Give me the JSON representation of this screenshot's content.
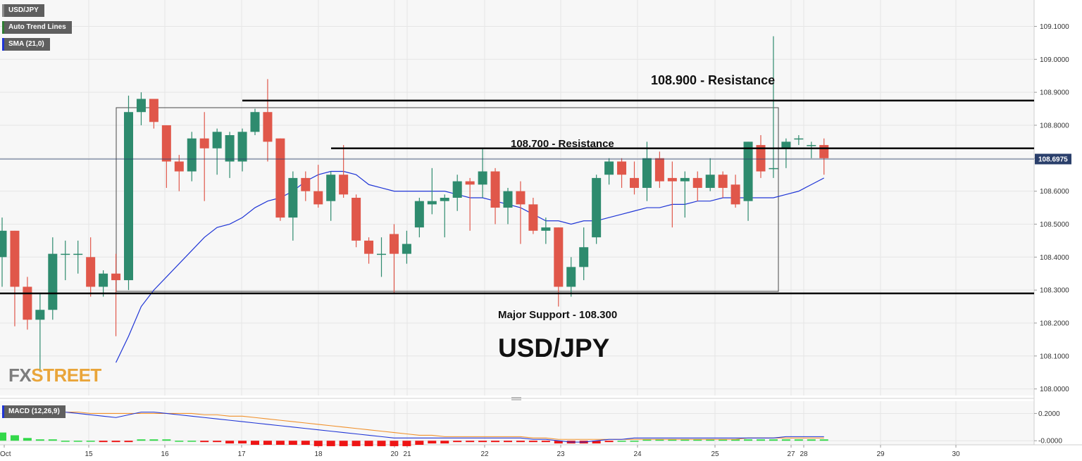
{
  "legends": {
    "main": [
      {
        "label": "USD/JPY",
        "color": "#5f5f5f"
      },
      {
        "label": "Auto Trend Lines",
        "color": "#2e7d32"
      },
      {
        "label": "SMA (21,0)",
        "color": "#1f35d6"
      }
    ],
    "macd": {
      "label": "MACD (12,26,9)",
      "color": "#1f35d6"
    }
  },
  "colors": {
    "up": "#2e8b6e",
    "down": "#e0574a",
    "sma": "#1f35d6",
    "macd_line": "#1f35d6",
    "signal_line": "#f0902a",
    "hist_up": "#33d84a",
    "hist_down": "#ee1515",
    "price_tag": "#2a3f6b",
    "plot_bg": "#f7f7f7",
    "grid": "#e6e6e6"
  },
  "annotations": {
    "resistance_high": "108.900 - Resistance",
    "resistance_mid": "108.700 - Resistance",
    "support": "Major Support - 108.300",
    "big_title": "USD/JPY",
    "watermark_fx": "FX",
    "watermark_street": "STREET"
  },
  "chart_data": [
    {
      "type": "candlestick",
      "title": "USD/JPY",
      "ylim": [
        107.98,
        109.18
      ],
      "y_ticks": [
        "109.1000",
        "109.0000",
        "108.9000",
        "108.8000",
        "108.7000",
        "108.6000",
        "108.5000",
        "108.4000",
        "108.3000",
        "108.2000",
        "108.1000",
        "108.0000"
      ],
      "x_ticks": [
        "Oct",
        "15",
        "16",
        "17",
        "18",
        "20",
        "21",
        "22",
        "23",
        "24",
        "25",
        "27",
        "28",
        "29",
        "30"
      ],
      "current_price": "108.6975",
      "levels": {
        "resistance_high": 108.875,
        "resistance_mid": 108.73,
        "support": 108.29
      },
      "candles": [
        {
          "o": 108.4,
          "h": 108.52,
          "l": 108.31,
          "c": 108.48
        },
        {
          "o": 108.48,
          "h": 108.48,
          "l": 108.19,
          "c": 108.31
        },
        {
          "o": 108.31,
          "h": 108.34,
          "l": 108.18,
          "c": 108.21
        },
        {
          "o": 108.21,
          "h": 108.29,
          "l": 108.06,
          "c": 108.24
        },
        {
          "o": 108.24,
          "h": 108.46,
          "l": 108.21,
          "c": 108.41
        },
        {
          "o": 108.41,
          "h": 108.45,
          "l": 108.33,
          "c": 108.41
        },
        {
          "o": 108.41,
          "h": 108.45,
          "l": 108.35,
          "c": 108.41
        },
        {
          "o": 108.4,
          "h": 108.46,
          "l": 108.28,
          "c": 108.31
        },
        {
          "o": 108.31,
          "h": 108.36,
          "l": 108.28,
          "c": 108.35
        },
        {
          "o": 108.35,
          "h": 108.41,
          "l": 108.16,
          "c": 108.33
        },
        {
          "o": 108.33,
          "h": 108.89,
          "l": 108.3,
          "c": 108.84
        },
        {
          "o": 108.84,
          "h": 108.9,
          "l": 108.8,
          "c": 108.88
        },
        {
          "o": 108.88,
          "h": 108.88,
          "l": 108.79,
          "c": 108.81
        },
        {
          "o": 108.8,
          "h": 108.8,
          "l": 108.61,
          "c": 108.69
        },
        {
          "o": 108.69,
          "h": 108.71,
          "l": 108.6,
          "c": 108.66
        },
        {
          "o": 108.66,
          "h": 108.78,
          "l": 108.63,
          "c": 108.76
        },
        {
          "o": 108.76,
          "h": 108.84,
          "l": 108.57,
          "c": 108.73
        },
        {
          "o": 108.73,
          "h": 108.79,
          "l": 108.65,
          "c": 108.78
        },
        {
          "o": 108.69,
          "h": 108.78,
          "l": 108.64,
          "c": 108.77
        },
        {
          "o": 108.69,
          "h": 108.79,
          "l": 108.66,
          "c": 108.78
        },
        {
          "o": 108.78,
          "h": 108.85,
          "l": 108.77,
          "c": 108.84
        },
        {
          "o": 108.84,
          "h": 108.94,
          "l": 108.69,
          "c": 108.75
        },
        {
          "o": 108.76,
          "h": 108.76,
          "l": 108.51,
          "c": 108.52
        },
        {
          "o": 108.52,
          "h": 108.66,
          "l": 108.45,
          "c": 108.64
        },
        {
          "o": 108.64,
          "h": 108.66,
          "l": 108.57,
          "c": 108.6
        },
        {
          "o": 108.6,
          "h": 108.68,
          "l": 108.55,
          "c": 108.56
        },
        {
          "o": 108.57,
          "h": 108.66,
          "l": 108.51,
          "c": 108.65
        },
        {
          "o": 108.65,
          "h": 108.74,
          "l": 108.58,
          "c": 108.59
        },
        {
          "o": 108.58,
          "h": 108.59,
          "l": 108.43,
          "c": 108.45
        },
        {
          "o": 108.45,
          "h": 108.46,
          "l": 108.38,
          "c": 108.41
        },
        {
          "o": 108.41,
          "h": 108.46,
          "l": 108.34,
          "c": 108.41
        },
        {
          "o": 108.47,
          "h": 108.5,
          "l": 108.29,
          "c": 108.41
        },
        {
          "o": 108.41,
          "h": 108.48,
          "l": 108.38,
          "c": 108.44
        },
        {
          "o": 108.49,
          "h": 108.58,
          "l": 108.46,
          "c": 108.57
        },
        {
          "o": 108.56,
          "h": 108.67,
          "l": 108.53,
          "c": 108.57
        },
        {
          "o": 108.57,
          "h": 108.59,
          "l": 108.46,
          "c": 108.58
        },
        {
          "o": 108.58,
          "h": 108.65,
          "l": 108.54,
          "c": 108.63
        },
        {
          "o": 108.63,
          "h": 108.64,
          "l": 108.48,
          "c": 108.62
        },
        {
          "o": 108.62,
          "h": 108.73,
          "l": 108.58,
          "c": 108.66
        },
        {
          "o": 108.66,
          "h": 108.67,
          "l": 108.5,
          "c": 108.55
        },
        {
          "o": 108.55,
          "h": 108.61,
          "l": 108.5,
          "c": 108.6
        },
        {
          "o": 108.6,
          "h": 108.63,
          "l": 108.44,
          "c": 108.56
        },
        {
          "o": 108.56,
          "h": 108.58,
          "l": 108.47,
          "c": 108.48
        },
        {
          "o": 108.48,
          "h": 108.52,
          "l": 108.44,
          "c": 108.49
        },
        {
          "o": 108.49,
          "h": 108.49,
          "l": 108.25,
          "c": 108.31
        },
        {
          "o": 108.31,
          "h": 108.4,
          "l": 108.28,
          "c": 108.37
        },
        {
          "o": 108.37,
          "h": 108.49,
          "l": 108.33,
          "c": 108.43
        },
        {
          "o": 108.46,
          "h": 108.65,
          "l": 108.44,
          "c": 108.64
        },
        {
          "o": 108.65,
          "h": 108.7,
          "l": 108.62,
          "c": 108.69
        },
        {
          "o": 108.69,
          "h": 108.7,
          "l": 108.61,
          "c": 108.65
        },
        {
          "o": 108.64,
          "h": 108.69,
          "l": 108.59,
          "c": 108.61
        },
        {
          "o": 108.61,
          "h": 108.75,
          "l": 108.57,
          "c": 108.7
        },
        {
          "o": 108.7,
          "h": 108.72,
          "l": 108.61,
          "c": 108.63
        },
        {
          "o": 108.64,
          "h": 108.69,
          "l": 108.49,
          "c": 108.63
        },
        {
          "o": 108.63,
          "h": 108.66,
          "l": 108.52,
          "c": 108.64
        },
        {
          "o": 108.64,
          "h": 108.66,
          "l": 108.57,
          "c": 108.61
        },
        {
          "o": 108.61,
          "h": 108.7,
          "l": 108.6,
          "c": 108.65
        },
        {
          "o": 108.65,
          "h": 108.66,
          "l": 108.58,
          "c": 108.61
        },
        {
          "o": 108.62,
          "h": 108.65,
          "l": 108.55,
          "c": 108.56
        },
        {
          "o": 108.57,
          "h": 108.75,
          "l": 108.51,
          "c": 108.75
        },
        {
          "o": 108.74,
          "h": 108.77,
          "l": 108.64,
          "c": 108.66
        },
        {
          "o": 108.67,
          "h": 109.07,
          "l": 108.64,
          "c": 108.67
        },
        {
          "o": 108.73,
          "h": 108.76,
          "l": 108.67,
          "c": 108.75
        },
        {
          "o": 108.76,
          "h": 108.77,
          "l": 108.74,
          "c": 108.76
        },
        {
          "o": 108.74,
          "h": 108.75,
          "l": 108.7,
          "c": 108.74
        },
        {
          "o": 108.74,
          "h": 108.76,
          "l": 108.65,
          "c": 108.7
        }
      ],
      "sma": [
        null,
        null,
        null,
        null,
        null,
        null,
        null,
        null,
        null,
        108.08,
        108.16,
        108.25,
        108.3,
        108.34,
        108.38,
        108.42,
        108.46,
        108.49,
        108.5,
        108.52,
        108.55,
        108.57,
        108.58,
        108.6,
        108.63,
        108.65,
        108.66,
        108.66,
        108.65,
        108.62,
        108.61,
        108.6,
        108.6,
        108.6,
        108.6,
        108.6,
        108.59,
        108.58,
        108.58,
        108.57,
        108.56,
        108.55,
        108.53,
        108.51,
        108.51,
        108.5,
        108.51,
        108.51,
        108.52,
        108.53,
        108.54,
        108.55,
        108.55,
        108.56,
        108.56,
        108.57,
        108.57,
        108.58,
        108.58,
        108.58,
        108.58,
        108.58,
        108.59,
        108.6,
        108.62,
        108.64
      ]
    },
    {
      "type": "macd",
      "title": "MACD (12,26,9)",
      "ylim": [
        -0.03,
        0.29
      ],
      "y_ticks": [
        "0.2000",
        "-0.0000"
      ],
      "macd": [
        0.25,
        0.23,
        0.22,
        0.21,
        0.21,
        0.21,
        0.2,
        0.19,
        0.18,
        0.17,
        0.19,
        0.21,
        0.21,
        0.2,
        0.19,
        0.18,
        0.17,
        0.16,
        0.15,
        0.14,
        0.13,
        0.12,
        0.11,
        0.1,
        0.09,
        0.08,
        0.07,
        0.06,
        0.05,
        0.04,
        0.03,
        0.02,
        0.02,
        0.02,
        0.02,
        0.02,
        0.02,
        0.02,
        0.02,
        0.02,
        0.02,
        0.02,
        0.01,
        0.01,
        0.0,
        -0.01,
        -0.01,
        0.0,
        0.01,
        0.01,
        0.02,
        0.02,
        0.02,
        0.02,
        0.02,
        0.02,
        0.02,
        0.02,
        0.02,
        0.02,
        0.02,
        0.02,
        0.03,
        0.03,
        0.03,
        0.03
      ],
      "signal": [
        0.21,
        0.21,
        0.21,
        0.21,
        0.21,
        0.21,
        0.21,
        0.2,
        0.2,
        0.2,
        0.2,
        0.2,
        0.2,
        0.2,
        0.2,
        0.2,
        0.19,
        0.19,
        0.18,
        0.18,
        0.17,
        0.16,
        0.15,
        0.14,
        0.13,
        0.12,
        0.11,
        0.1,
        0.09,
        0.08,
        0.07,
        0.06,
        0.05,
        0.04,
        0.04,
        0.03,
        0.03,
        0.03,
        0.03,
        0.03,
        0.03,
        0.03,
        0.02,
        0.02,
        0.01,
        0.01,
        0.01,
        0.01,
        0.01,
        0.01,
        0.01,
        0.01,
        0.01,
        0.01,
        0.01,
        0.01,
        0.01,
        0.01,
        0.01,
        0.02,
        0.02,
        0.02,
        0.02,
        0.02,
        0.02,
        0.02
      ],
      "histogram": [
        0.06,
        0.04,
        0.02,
        0.01,
        0.01,
        0.0,
        0.0,
        0.0,
        -0.01,
        -0.01,
        -0.01,
        0.01,
        0.01,
        0.01,
        0.0,
        0.0,
        -0.01,
        -0.01,
        -0.02,
        -0.02,
        -0.03,
        -0.03,
        -0.03,
        -0.03,
        -0.03,
        -0.04,
        -0.04,
        -0.04,
        -0.04,
        -0.04,
        -0.04,
        -0.04,
        -0.04,
        -0.03,
        -0.02,
        -0.02,
        -0.01,
        -0.01,
        -0.01,
        -0.01,
        -0.01,
        -0.01,
        -0.01,
        -0.01,
        -0.02,
        -0.02,
        -0.02,
        -0.02,
        -0.01,
        0.0,
        0.0,
        0.01,
        0.01,
        0.01,
        0.01,
        0.01,
        0.01,
        0.01,
        0.01,
        0.01,
        0.01,
        0.01,
        0.01,
        0.01,
        0.01,
        0.01
      ]
    }
  ]
}
